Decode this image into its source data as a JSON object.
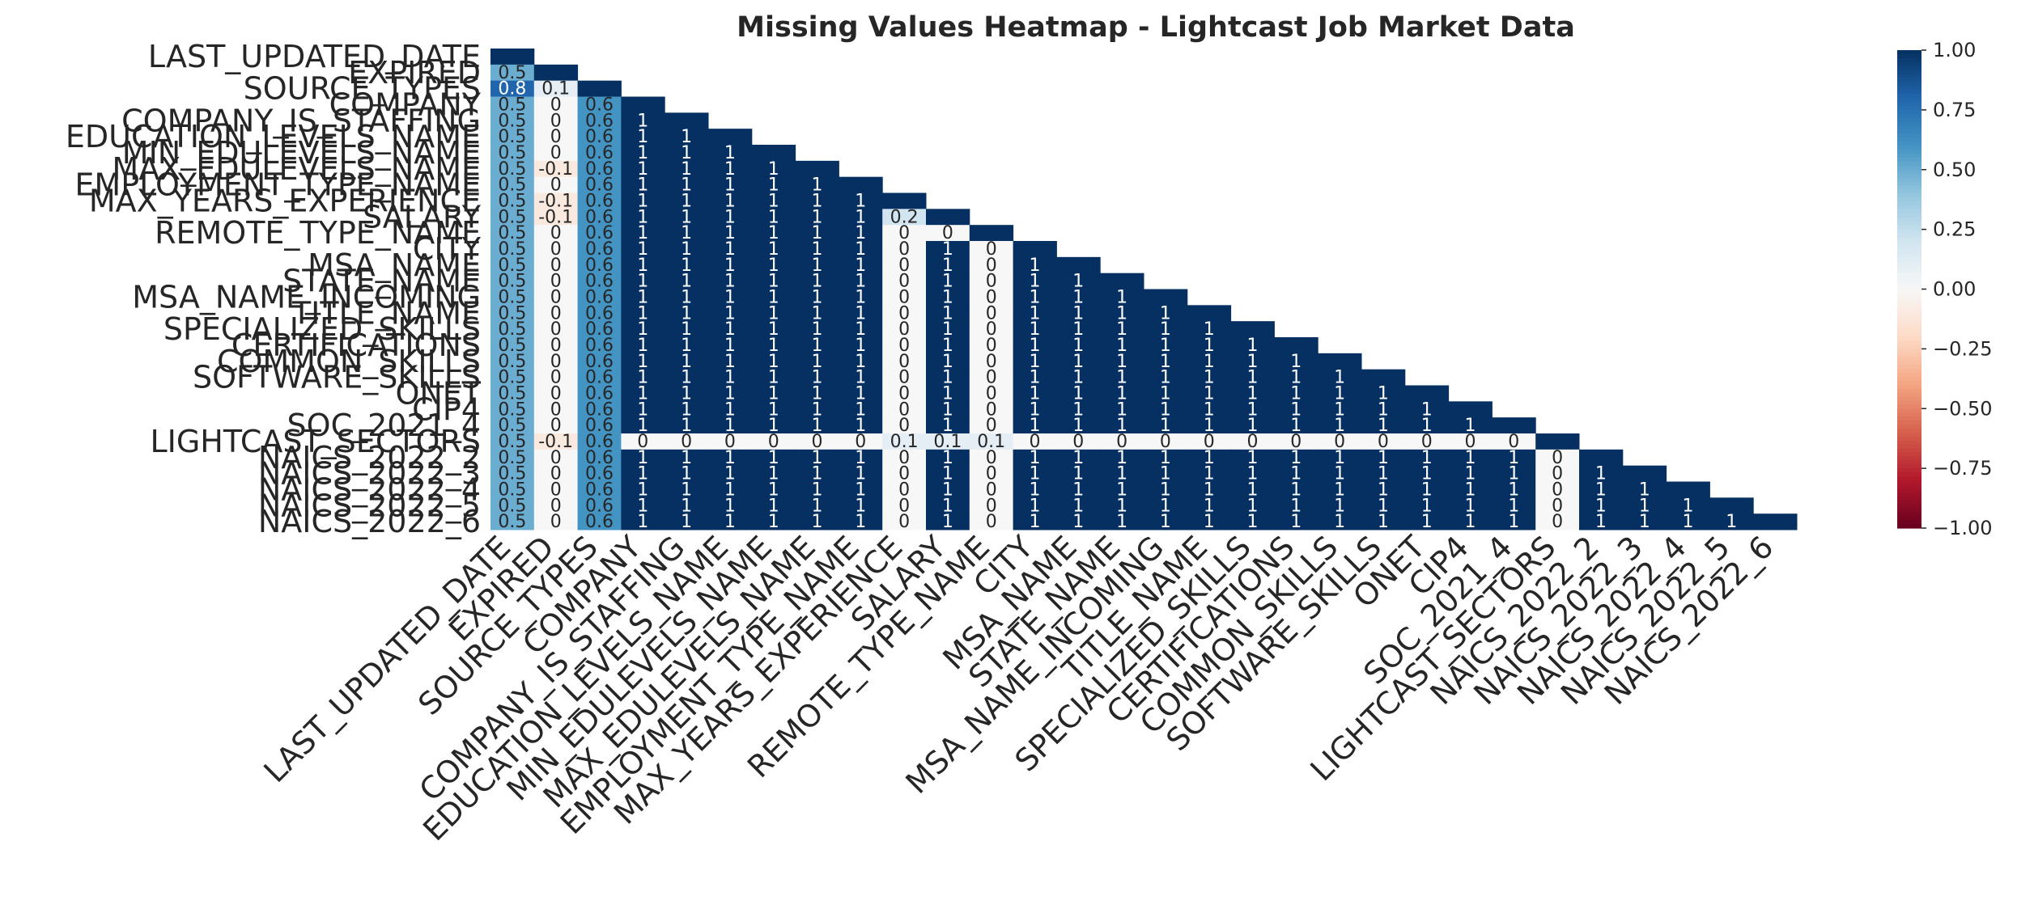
{
  "chart_data": {
    "type": "heatmap",
    "title": "Missing Values Heatmap - Lightcast Job Market Data",
    "rows": [
      "LAST_UPDATED_DATE",
      "EXPIRED",
      "SOURCE_TYPES",
      "COMPANY",
      "COMPANY_IS_STAFFING",
      "EDUCATION_LEVELS_NAME",
      "MIN_EDULEVELS_NAME",
      "MAX_EDULEVELS_NAME",
      "EMPLOYMENT_TYPE_NAME",
      "MAX_YEARS_EXPERIENCE",
      "SALARY",
      "REMOTE_TYPE_NAME",
      "CITY",
      "MSA_NAME",
      "STATE_NAME",
      "MSA_NAME_INCOMING",
      "TITLE_NAME",
      "SPECIALIZED_SKILLS",
      "CERTIFICATIONS",
      "COMMON_SKILLS",
      "SOFTWARE_SKILLS",
      "ONET",
      "CIP4",
      "SOC_2021_4",
      "LIGHTCAST_SECTORS",
      "NAICS_2022_2",
      "NAICS_2022_3",
      "NAICS_2022_4",
      "NAICS_2022_5",
      "NAICS_2022_6"
    ],
    "columns": [
      "LAST_UPDATED_DATE",
      "EXPIRED",
      "SOURCE_TYPES",
      "COMPANY",
      "COMPANY_IS_STAFFING",
      "EDUCATION_LEVELS_NAME",
      "MIN_EDULEVELS_NAME",
      "MAX_EDULEVELS_NAME",
      "EMPLOYMENT_TYPE_NAME",
      "MAX_YEARS_EXPERIENCE",
      "SALARY",
      "REMOTE_TYPE_NAME",
      "CITY",
      "MSA_NAME",
      "STATE_NAME",
      "MSA_NAME_INCOMING",
      "TITLE_NAME",
      "SPECIALIZED_SKILLS",
      "CERTIFICATIONS",
      "COMMON_SKILLS",
      "SOFTWARE_SKILLS",
      "ONET",
      "CIP4",
      "SOC_2021_4",
      "LIGHTCAST_SECTORS",
      "NAICS_2022_2",
      "NAICS_2022_3",
      "NAICS_2022_4",
      "NAICS_2022_5",
      "NAICS_2022_6"
    ],
    "mask": "upper-triangle",
    "values": [
      [
        1.0
      ],
      [
        0.5,
        1.0
      ],
      [
        0.8,
        0.1,
        1.0
      ],
      [
        0.5,
        0.0,
        0.6,
        1.0
      ],
      [
        0.5,
        0.0,
        0.6,
        1.0,
        1.0
      ],
      [
        0.5,
        0.0,
        0.6,
        1.0,
        1.0,
        1.0
      ],
      [
        0.5,
        0.0,
        0.6,
        1.0,
        1.0,
        1.0,
        1.0
      ],
      [
        0.5,
        -0.1,
        0.6,
        1.0,
        1.0,
        1.0,
        1.0,
        1.0
      ],
      [
        0.5,
        0.0,
        0.6,
        1.0,
        1.0,
        1.0,
        1.0,
        1.0,
        1.0
      ],
      [
        0.5,
        -0.1,
        0.6,
        1.0,
        1.0,
        1.0,
        1.0,
        1.0,
        1.0,
        1.0
      ],
      [
        0.5,
        -0.1,
        0.6,
        1.0,
        1.0,
        1.0,
        1.0,
        1.0,
        1.0,
        0.2,
        1.0
      ],
      [
        0.5,
        0.0,
        0.6,
        1.0,
        1.0,
        1.0,
        1.0,
        1.0,
        1.0,
        0.0,
        0.0,
        1.0
      ],
      [
        0.5,
        0.0,
        0.6,
        1.0,
        1.0,
        1.0,
        1.0,
        1.0,
        1.0,
        0.0,
        1.0,
        0.0,
        1.0
      ],
      [
        0.5,
        0.0,
        0.6,
        1.0,
        1.0,
        1.0,
        1.0,
        1.0,
        1.0,
        0.0,
        1.0,
        0.0,
        1.0,
        1.0
      ],
      [
        0.5,
        0.0,
        0.6,
        1.0,
        1.0,
        1.0,
        1.0,
        1.0,
        1.0,
        0.0,
        1.0,
        0.0,
        1.0,
        1.0,
        1.0
      ],
      [
        0.5,
        0.0,
        0.6,
        1.0,
        1.0,
        1.0,
        1.0,
        1.0,
        1.0,
        0.0,
        1.0,
        0.0,
        1.0,
        1.0,
        1.0,
        1.0
      ],
      [
        0.5,
        0.0,
        0.6,
        1.0,
        1.0,
        1.0,
        1.0,
        1.0,
        1.0,
        0.0,
        1.0,
        0.0,
        1.0,
        1.0,
        1.0,
        1.0,
        1.0
      ],
      [
        0.5,
        0.0,
        0.6,
        1.0,
        1.0,
        1.0,
        1.0,
        1.0,
        1.0,
        0.0,
        1.0,
        0.0,
        1.0,
        1.0,
        1.0,
        1.0,
        1.0,
        1.0
      ],
      [
        0.5,
        0.0,
        0.6,
        1.0,
        1.0,
        1.0,
        1.0,
        1.0,
        1.0,
        0.0,
        1.0,
        0.0,
        1.0,
        1.0,
        1.0,
        1.0,
        1.0,
        1.0,
        1.0
      ],
      [
        0.5,
        0.0,
        0.6,
        1.0,
        1.0,
        1.0,
        1.0,
        1.0,
        1.0,
        0.0,
        1.0,
        0.0,
        1.0,
        1.0,
        1.0,
        1.0,
        1.0,
        1.0,
        1.0,
        1.0
      ],
      [
        0.5,
        0.0,
        0.6,
        1.0,
        1.0,
        1.0,
        1.0,
        1.0,
        1.0,
        0.0,
        1.0,
        0.0,
        1.0,
        1.0,
        1.0,
        1.0,
        1.0,
        1.0,
        1.0,
        1.0,
        1.0
      ],
      [
        0.5,
        0.0,
        0.6,
        1.0,
        1.0,
        1.0,
        1.0,
        1.0,
        1.0,
        0.0,
        1.0,
        0.0,
        1.0,
        1.0,
        1.0,
        1.0,
        1.0,
        1.0,
        1.0,
        1.0,
        1.0,
        1.0
      ],
      [
        0.5,
        0.0,
        0.6,
        1.0,
        1.0,
        1.0,
        1.0,
        1.0,
        1.0,
        0.0,
        1.0,
        0.0,
        1.0,
        1.0,
        1.0,
        1.0,
        1.0,
        1.0,
        1.0,
        1.0,
        1.0,
        1.0,
        1.0
      ],
      [
        0.5,
        0.0,
        0.6,
        1.0,
        1.0,
        1.0,
        1.0,
        1.0,
        1.0,
        0.0,
        1.0,
        0.0,
        1.0,
        1.0,
        1.0,
        1.0,
        1.0,
        1.0,
        1.0,
        1.0,
        1.0,
        1.0,
        1.0,
        1.0
      ],
      [
        0.5,
        -0.1,
        0.6,
        0.0,
        0.0,
        0.0,
        0.0,
        0.0,
        0.0,
        0.1,
        0.1,
        0.1,
        0.0,
        0.0,
        0.0,
        0.0,
        0.0,
        0.0,
        0.0,
        0.0,
        0.0,
        0.0,
        0.0,
        0.0,
        1.0
      ],
      [
        0.5,
        0.0,
        0.6,
        1.0,
        1.0,
        1.0,
        1.0,
        1.0,
        1.0,
        0.0,
        1.0,
        0.0,
        1.0,
        1.0,
        1.0,
        1.0,
        1.0,
        1.0,
        1.0,
        1.0,
        1.0,
        1.0,
        1.0,
        1.0,
        0.0,
        1.0
      ],
      [
        0.5,
        0.0,
        0.6,
        1.0,
        1.0,
        1.0,
        1.0,
        1.0,
        1.0,
        0.0,
        1.0,
        0.0,
        1.0,
        1.0,
        1.0,
        1.0,
        1.0,
        1.0,
        1.0,
        1.0,
        1.0,
        1.0,
        1.0,
        1.0,
        0.0,
        1.0,
        1.0
      ],
      [
        0.5,
        0.0,
        0.6,
        1.0,
        1.0,
        1.0,
        1.0,
        1.0,
        1.0,
        0.0,
        1.0,
        0.0,
        1.0,
        1.0,
        1.0,
        1.0,
        1.0,
        1.0,
        1.0,
        1.0,
        1.0,
        1.0,
        1.0,
        1.0,
        0.0,
        1.0,
        1.0,
        1.0
      ],
      [
        0.5,
        0.0,
        0.6,
        1.0,
        1.0,
        1.0,
        1.0,
        1.0,
        1.0,
        0.0,
        1.0,
        0.0,
        1.0,
        1.0,
        1.0,
        1.0,
        1.0,
        1.0,
        1.0,
        1.0,
        1.0,
        1.0,
        1.0,
        1.0,
        0.0,
        1.0,
        1.0,
        1.0,
        1.0
      ],
      [
        0.5,
        0.0,
        0.6,
        1.0,
        1.0,
        1.0,
        1.0,
        1.0,
        1.0,
        0.0,
        1.0,
        0.0,
        1.0,
        1.0,
        1.0,
        1.0,
        1.0,
        1.0,
        1.0,
        1.0,
        1.0,
        1.0,
        1.0,
        1.0,
        0.0,
        1.0,
        1.0,
        1.0,
        1.0,
        1.0
      ]
    ],
    "colormap": "RdBu",
    "vmin": -1.0,
    "vmax": 1.0,
    "colorbar_ticks": [
      "1.00",
      "0.75",
      "0.50",
      "0.25",
      "0.00",
      "−0.25",
      "−0.50",
      "−0.75",
      "−1.00"
    ],
    "colorbar_values": [
      1.0,
      0.75,
      0.5,
      0.25,
      0.0,
      -0.25,
      -0.5,
      -0.75,
      -1.0
    ],
    "colors": {
      "pos": "#053061",
      "neg": "#67001f",
      "mid": "#f7f7f7"
    }
  }
}
